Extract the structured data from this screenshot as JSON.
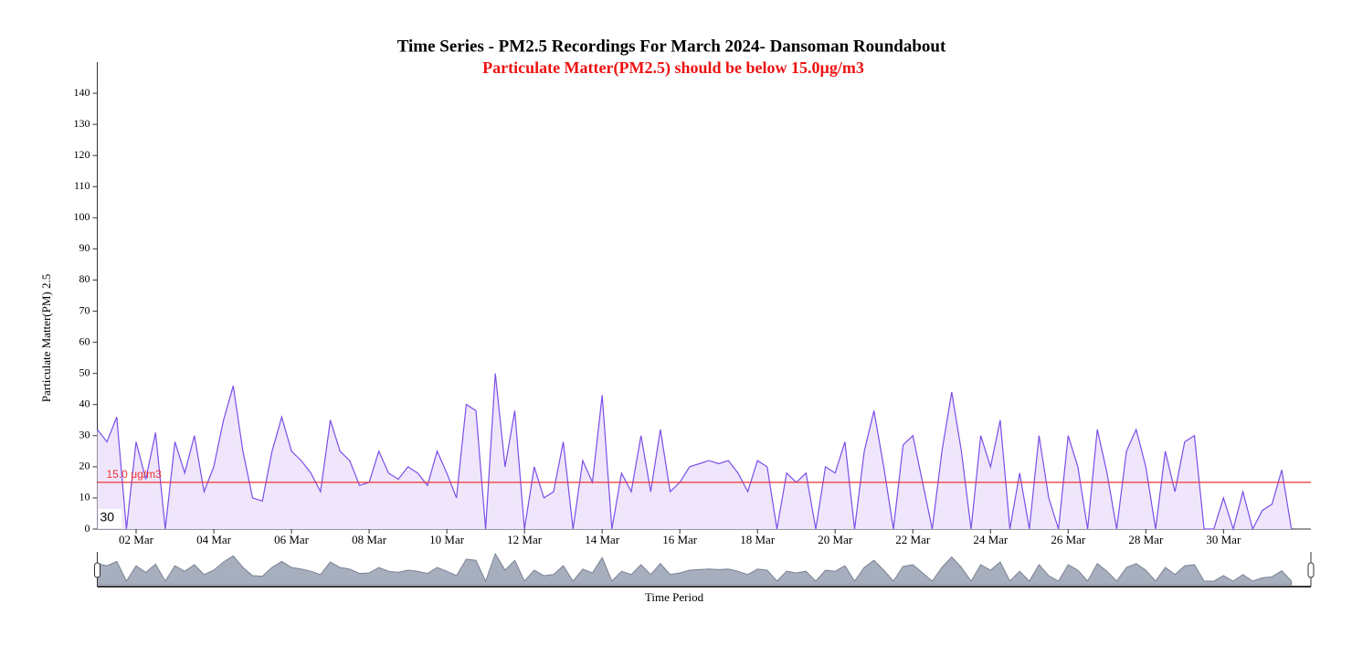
{
  "chart_data": {
    "type": "area",
    "title": "Time Series - PM2.5 Recordings For March 2024- Dansoman Roundabout",
    "subtitle": "Particulate Matter(PM2.5) should be below 15.0µg/m3",
    "y_label": "Particulate Matter(PM) 2.5",
    "x_label": "Time Period",
    "threshold": {
      "value": 15,
      "label": "15.0 μg/m3",
      "color": "#ee3333"
    },
    "corner_label": "30",
    "color": "#7b4ee8",
    "fill": "#efe6fc",
    "xlim": [
      1,
      32.25
    ],
    "ylim": [
      0,
      150
    ],
    "yticks": [
      0,
      10,
      20,
      30,
      40,
      50,
      60,
      70,
      80,
      90,
      100,
      110,
      120,
      130,
      140
    ],
    "xticks": [
      {
        "value": 2,
        "label": "02 Mar"
      },
      {
        "value": 4,
        "label": "04 Mar"
      },
      {
        "value": 6,
        "label": "06 Mar"
      },
      {
        "value": 8,
        "label": "08 Mar"
      },
      {
        "value": 10,
        "label": "10 Mar"
      },
      {
        "value": 12,
        "label": "12 Mar"
      },
      {
        "value": 14,
        "label": "14 Mar"
      },
      {
        "value": 16,
        "label": "16 Mar"
      },
      {
        "value": 18,
        "label": "18 Mar"
      },
      {
        "value": 20,
        "label": "20 Mar"
      },
      {
        "value": 22,
        "label": "22 Mar"
      },
      {
        "value": 24,
        "label": "24 Mar"
      },
      {
        "value": 26,
        "label": "26 Mar"
      },
      {
        "value": 28,
        "label": "28 Mar"
      },
      {
        "value": 30,
        "label": "30 Mar"
      }
    ],
    "x": [
      1,
      1.25,
      1.5,
      1.75,
      2,
      2.25,
      2.5,
      2.75,
      3,
      3.25,
      3.5,
      3.75,
      4,
      4.25,
      4.5,
      4.75,
      5,
      5.25,
      5.5,
      5.75,
      6,
      6.25,
      6.5,
      6.75,
      7,
      7.25,
      7.5,
      7.75,
      8,
      8.25,
      8.5,
      8.75,
      9,
      9.25,
      9.5,
      9.75,
      10,
      10.25,
      10.5,
      10.75,
      11,
      11.25,
      11.5,
      11.75,
      12,
      12.25,
      12.5,
      12.75,
      13,
      13.25,
      13.5,
      13.75,
      14,
      14.25,
      14.5,
      14.75,
      15,
      15.25,
      15.5,
      15.75,
      16,
      16.25,
      16.5,
      16.75,
      17,
      17.25,
      17.5,
      17.75,
      18,
      18.25,
      18.5,
      18.75,
      19,
      19.25,
      19.5,
      19.75,
      20,
      20.25,
      20.5,
      20.75,
      21,
      21.25,
      21.5,
      21.75,
      22,
      22.25,
      22.5,
      22.75,
      23,
      23.25,
      23.5,
      23.75,
      24,
      24.25,
      24.5,
      24.75,
      25,
      25.25,
      25.5,
      25.75,
      26,
      26.25,
      26.5,
      26.75,
      27,
      27.25,
      27.5,
      27.75,
      28,
      28.25,
      28.5,
      28.75,
      29,
      29.25,
      29.5,
      29.75,
      30,
      30.25,
      30.5,
      30.75,
      31,
      31.25,
      31.5,
      31.75
    ],
    "values": [
      32,
      28,
      36,
      0,
      28,
      16,
      31,
      0,
      28,
      18,
      30,
      12,
      20,
      35,
      46,
      25,
      10,
      9,
      25,
      36,
      25,
      22,
      18,
      12,
      35,
      25,
      22,
      14,
      15,
      25,
      18,
      16,
      20,
      18,
      14,
      25,
      18,
      10,
      40,
      38,
      0,
      50,
      20,
      38,
      0,
      20,
      10,
      12,
      28,
      0,
      22,
      15,
      43,
      0,
      18,
      12,
      30,
      12,
      32,
      12,
      15,
      20,
      21,
      22,
      21,
      22,
      18,
      12,
      22,
      20,
      0,
      18,
      15,
      18,
      0,
      20,
      18,
      28,
      0,
      25,
      38,
      20,
      0,
      27,
      30,
      15,
      0,
      25,
      44,
      25,
      0,
      30,
      20,
      35,
      0,
      18,
      0,
      30,
      10,
      0,
      30,
      20,
      0,
      32,
      18,
      0,
      25,
      32,
      20,
      0,
      25,
      12,
      28,
      30,
      0,
      0,
      10,
      0,
      12,
      0,
      6,
      8,
      19,
      0
    ]
  }
}
